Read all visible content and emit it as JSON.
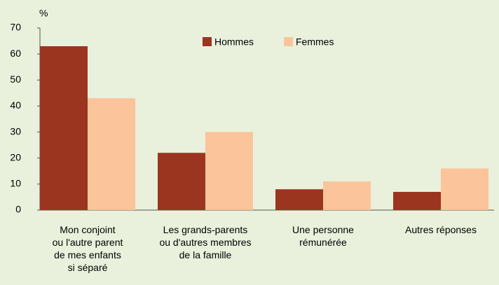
{
  "chart_data": {
    "type": "bar",
    "y_label": "%",
    "categories": [
      "Mon conjoint\nou l'autre parent\nde mes enfants\nsi séparé",
      "Les grands-parents\nou d'autres membres\nde la famille",
      "Une personne\nrémunérée",
      "Autres réponses"
    ],
    "series": [
      {
        "name": "Hommes",
        "color": "#9b3520",
        "values": [
          63,
          22,
          8,
          7
        ]
      },
      {
        "name": "Femmes",
        "color": "#fbc49a",
        "values": [
          43,
          30,
          11,
          16
        ]
      }
    ],
    "ylim": [
      0,
      70
    ],
    "yticks": [
      0,
      10,
      20,
      30,
      40,
      50,
      60,
      70
    ],
    "grid": false,
    "legend": "top"
  }
}
